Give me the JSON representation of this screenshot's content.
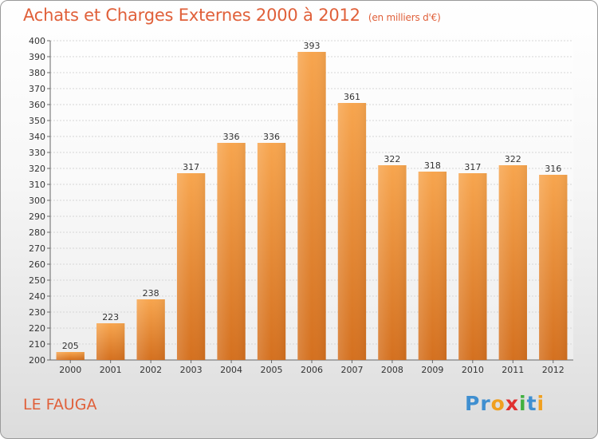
{
  "header": {
    "title": "Achats et Charges Externes 2000 à 2012",
    "subtitle": "(en milliers d'€)"
  },
  "footer": {
    "commune": "LE FAUGA",
    "logo_letters": [
      {
        "ch": "P",
        "color": "#3f8fd0"
      },
      {
        "ch": "r",
        "color": "#3f8fd0"
      },
      {
        "ch": "o",
        "color": "#f0a020"
      },
      {
        "ch": "x",
        "color": "#e03030"
      },
      {
        "ch": "i",
        "color": "#40b040"
      },
      {
        "ch": "t",
        "color": "#3f8fd0"
      },
      {
        "ch": "i",
        "color": "#f0a020"
      }
    ]
  },
  "chart_data": {
    "type": "bar",
    "categories": [
      "2000",
      "2001",
      "2002",
      "2003",
      "2004",
      "2005",
      "2006",
      "2007",
      "2008",
      "2009",
      "2010",
      "2011",
      "2012"
    ],
    "values": [
      205,
      223,
      238,
      317,
      336,
      336,
      393,
      361,
      322,
      318,
      317,
      322,
      316
    ],
    "title": "Achats et Charges Externes 2000 à 2012",
    "subtitle": "(en milliers d'€)",
    "ylim": [
      200,
      400
    ],
    "ytick_step": 10,
    "grid": true,
    "bar_color_top": "#f7a54e",
    "bar_color_bottom": "#d4701f"
  }
}
